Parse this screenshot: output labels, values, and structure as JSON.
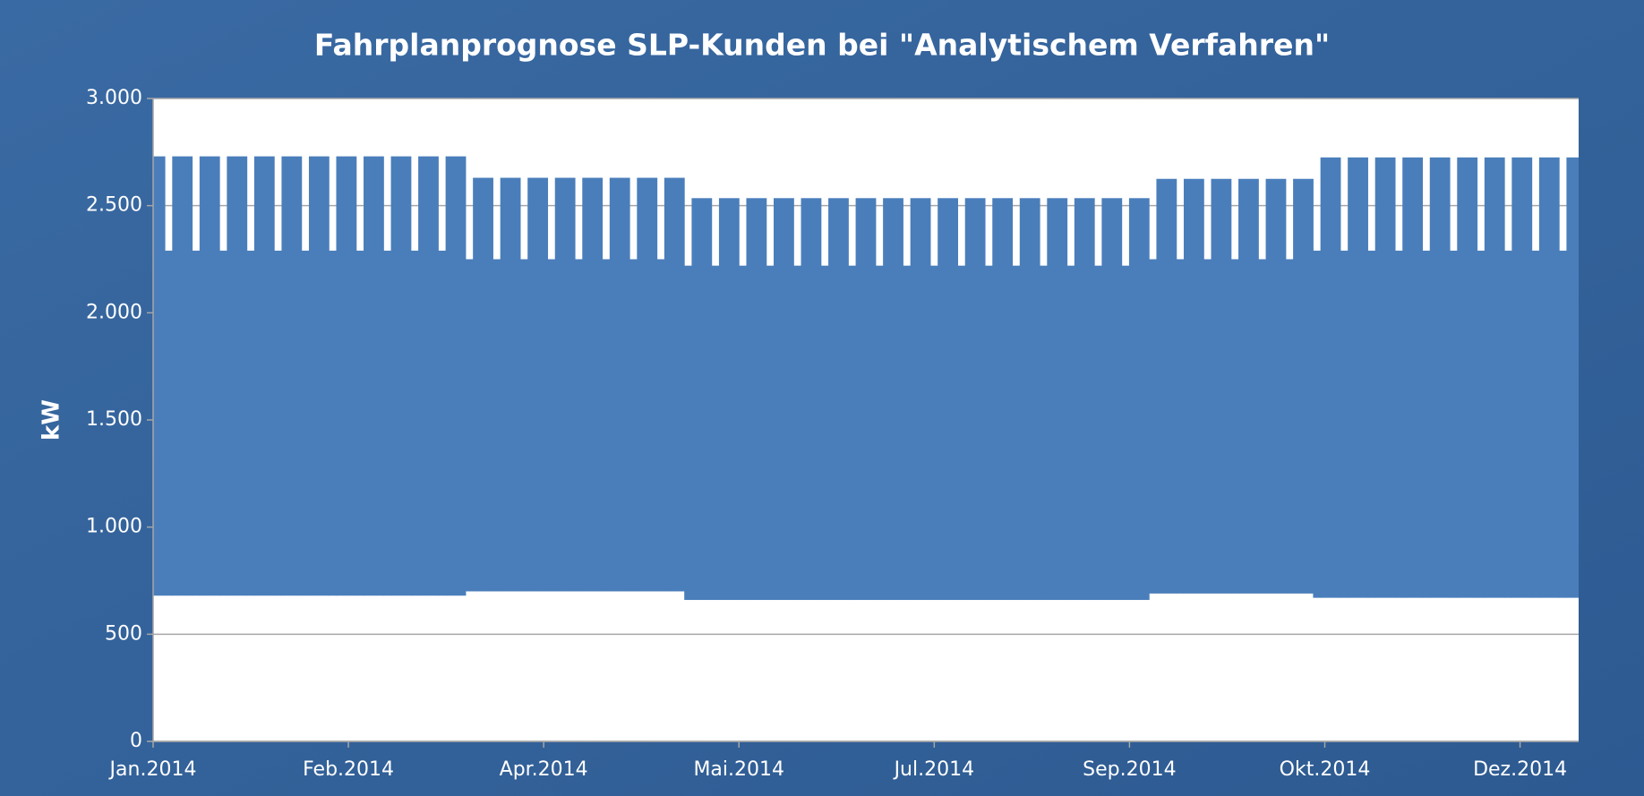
{
  "chart_data": {
    "type": "weekband",
    "title": "Fahrplanprognose SLP-Kunden bei \"Analytischem Verfahren\"",
    "y_label": "kW",
    "color": "#4a7ebb",
    "xlim": [
      0,
      365
    ],
    "xticks": [
      {
        "value": 0,
        "label": "Jan.2014"
      },
      {
        "value": 50,
        "label": "Feb.2014"
      },
      {
        "value": 100,
        "label": "Apr.2014"
      },
      {
        "value": 150,
        "label": "Mai.2014"
      },
      {
        "value": 200,
        "label": "Jul.2014"
      },
      {
        "value": 250,
        "label": "Sep.2014"
      },
      {
        "value": 300,
        "label": "Okt.2014"
      },
      {
        "value": 350,
        "label": "Dez.2014"
      }
    ],
    "ylim": [
      0,
      3000
    ],
    "yticks": [
      0,
      500,
      {
        "value": 1000,
        "label": "1.000"
      },
      {
        "value": 1500,
        "label": "1.500"
      },
      {
        "value": 2000,
        "label": "2.000"
      },
      {
        "value": 2500,
        "label": "2.500"
      },
      {
        "value": 3000,
        "label": "3.000"
      }
    ],
    "grid": true,
    "x": [
      -4,
      3,
      10,
      17,
      24,
      31,
      38,
      45,
      52,
      59,
      66,
      73,
      80,
      87,
      94,
      101,
      108,
      115,
      122,
      129,
      136,
      143,
      150,
      157,
      164,
      171,
      178,
      185,
      192,
      199,
      206,
      213,
      220,
      227,
      234,
      241,
      248,
      255,
      262,
      269,
      276,
      283,
      290,
      297,
      304,
      311,
      318,
      325,
      332,
      339,
      346,
      353,
      360
    ],
    "values": [
      2730,
      2730,
      2730,
      2730,
      2730,
      2730,
      2730,
      2730,
      2730,
      2730,
      2730,
      2730,
      2630,
      2630,
      2630,
      2630,
      2630,
      2630,
      2630,
      2630,
      2535,
      2535,
      2535,
      2535,
      2535,
      2535,
      2535,
      2535,
      2535,
      2535,
      2535,
      2535,
      2535,
      2535,
      2535,
      2535,
      2535,
      2625,
      2625,
      2625,
      2625,
      2625,
      2625,
      2725,
      2725,
      2725,
      2725,
      2725,
      2725,
      2725,
      2725,
      2725,
      2725
    ],
    "weekend_values": [
      2290,
      2290,
      2290,
      2290,
      2290,
      2290,
      2290,
      2290,
      2290,
      2290,
      2290,
      2290,
      2250,
      2250,
      2250,
      2250,
      2250,
      2250,
      2250,
      2250,
      2220,
      2220,
      2220,
      2220,
      2220,
      2220,
      2220,
      2220,
      2220,
      2220,
      2220,
      2220,
      2220,
      2220,
      2220,
      2220,
      2220,
      2250,
      2250,
      2250,
      2250,
      2250,
      2250,
      2290,
      2290,
      2290,
      2290,
      2290,
      2290,
      2290,
      2290,
      2290,
      2290
    ],
    "lower_values": [
      680,
      680,
      680,
      680,
      680,
      680,
      680,
      680,
      680,
      680,
      680,
      680,
      700,
      700,
      700,
      700,
      700,
      700,
      700,
      700,
      660,
      660,
      660,
      660,
      660,
      660,
      660,
      660,
      660,
      660,
      660,
      660,
      660,
      660,
      660,
      660,
      660,
      690,
      690,
      690,
      690,
      690,
      690,
      670,
      670,
      670,
      670,
      670,
      670,
      670,
      670,
      670,
      670
    ]
  }
}
